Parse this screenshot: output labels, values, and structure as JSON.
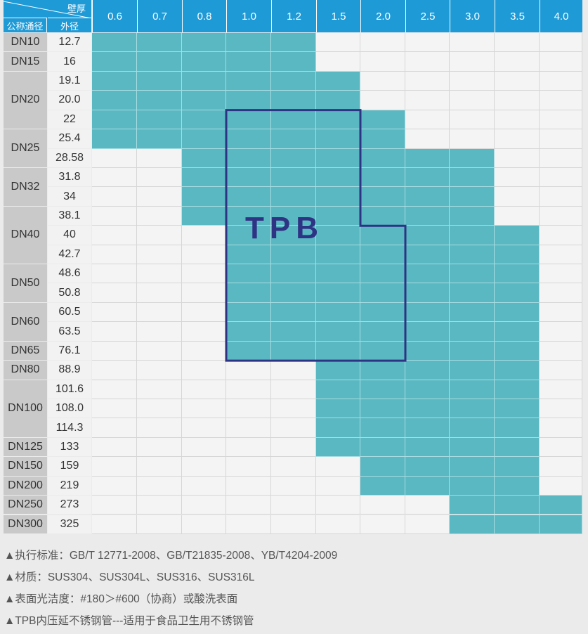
{
  "header": {
    "wall_thickness_label": "壁厚",
    "nominal_diameter_label": "公称通径",
    "outer_diameter_label": "外径",
    "thickness_columns": [
      "0.6",
      "0.7",
      "0.8",
      "1.0",
      "1.2",
      "1.5",
      "2.0",
      "2.5",
      "3.0",
      "3.5",
      "4.0"
    ]
  },
  "colors": {
    "header": "#1e9ad6",
    "available": "#5ab8c2",
    "tpb_outline": "#2e3384"
  },
  "groups": [
    {
      "dn": "DN10",
      "rows": 1
    },
    {
      "dn": "DN15",
      "rows": 1
    },
    {
      "dn": "DN20",
      "rows": 3
    },
    {
      "dn": "DN25",
      "rows": 2
    },
    {
      "dn": "DN32",
      "rows": 2
    },
    {
      "dn": "DN40",
      "rows": 3
    },
    {
      "dn": "DN50",
      "rows": 2
    },
    {
      "dn": "DN60",
      "rows": 2
    },
    {
      "dn": "DN65",
      "rows": 1
    },
    {
      "dn": "DN80",
      "rows": 1
    },
    {
      "dn": "DN100",
      "rows": 3
    },
    {
      "dn": "DN125",
      "rows": 1
    },
    {
      "dn": "DN150",
      "rows": 1
    },
    {
      "dn": "DN200",
      "rows": 1
    },
    {
      "dn": "DN250",
      "rows": 1
    },
    {
      "dn": "DN300",
      "rows": 1
    }
  ],
  "rows": [
    {
      "od": "12.7",
      "min": "0.6",
      "max": "1.2"
    },
    {
      "od": "16",
      "min": "0.6",
      "max": "1.2"
    },
    {
      "od": "19.1",
      "min": "0.6",
      "max": "1.5"
    },
    {
      "od": "20.0",
      "min": "0.6",
      "max": "1.5"
    },
    {
      "od": "22",
      "min": "0.6",
      "max": "2.0"
    },
    {
      "od": "25.4",
      "min": "0.6",
      "max": "2.0"
    },
    {
      "od": "28.58",
      "min": "0.8",
      "max": "3.0"
    },
    {
      "od": "31.8",
      "min": "0.8",
      "max": "3.0"
    },
    {
      "od": "34",
      "min": "0.8",
      "max": "3.0"
    },
    {
      "od": "38.1",
      "min": "0.8",
      "max": "3.0"
    },
    {
      "od": "40",
      "min": "1.0",
      "max": "3.5"
    },
    {
      "od": "42.7",
      "min": "1.0",
      "max": "3.5"
    },
    {
      "od": "48.6",
      "min": "1.0",
      "max": "3.5"
    },
    {
      "od": "50.8",
      "min": "1.0",
      "max": "3.5"
    },
    {
      "od": "60.5",
      "min": "1.0",
      "max": "3.5"
    },
    {
      "od": "63.5",
      "min": "1.0",
      "max": "3.5"
    },
    {
      "od": "76.1",
      "min": "1.0",
      "max": "3.5"
    },
    {
      "od": "88.9",
      "min": "1.5",
      "max": "3.5"
    },
    {
      "od": "101.6",
      "min": "1.5",
      "max": "3.5"
    },
    {
      "od": "108.0",
      "min": "1.5",
      "max": "3.5"
    },
    {
      "od": "114.3",
      "min": "1.5",
      "max": "3.5"
    },
    {
      "od": "133",
      "min": "1.5",
      "max": "3.5"
    },
    {
      "od": "159",
      "min": "2.0",
      "max": "3.5"
    },
    {
      "od": "219",
      "min": "2.0",
      "max": "3.5"
    },
    {
      "od": "273",
      "min": "3.0",
      "max": "4.0"
    },
    {
      "od": "325",
      "min": "3.0",
      "max": "4.0"
    }
  ],
  "tpb": {
    "label": "TPB"
  },
  "notes": [
    "▲执行标准：GB/T 12771-2008、GB/T21835-2008、YB/T4204-2009",
    "▲材质：SUS304、SUS304L、SUS316、SUS316L",
    "▲表面光洁度：#180＞#600（协商）或酸洗表面",
    "▲TPB内压延不锈钢管---适用于食品卫生用不锈钢管"
  ]
}
